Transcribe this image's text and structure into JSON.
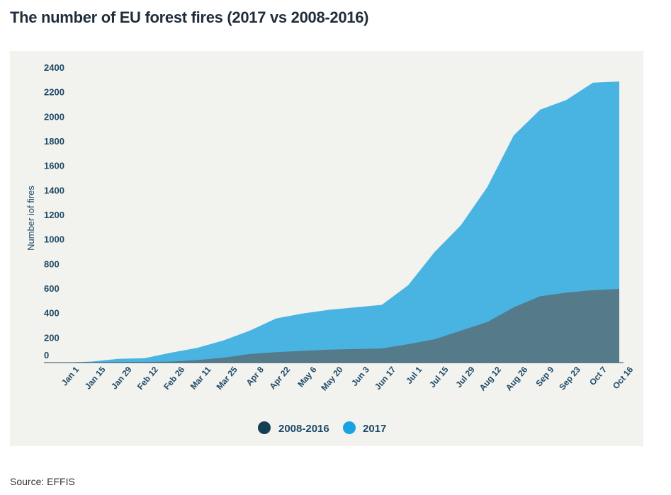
{
  "page": {
    "title": "The number of EU forest fires (2017 vs 2008-2016)",
    "source": "Source: EFFIS"
  },
  "chart_data": {
    "type": "area",
    "title": "The number of EU forest fires (2017 vs 2008-2016)",
    "xlabel": "",
    "ylabel": "Number iof fires",
    "ylim": [
      0,
      2400
    ],
    "yticks": [
      0,
      200,
      400,
      600,
      800,
      1000,
      1200,
      1400,
      1600,
      1800,
      2000,
      2200,
      2400
    ],
    "grid": false,
    "legend_position": "bottom-center",
    "categories": [
      "Jan 1",
      "Jan 15",
      "Jan 29",
      "Feb 12",
      "Feb 26",
      "Mar 11",
      "Mar 25",
      "Apr 8",
      "Apr 22",
      "May 6",
      "May 20",
      "Jun 3",
      "Jun 17",
      "Jul 1",
      "Jul 15",
      "Jul 29",
      "Aug 12",
      "Aug 26",
      "Sep 9",
      "Sep 23",
      "Oct 7",
      "Oct 16"
    ],
    "series": [
      {
        "name": "2008-2016",
        "color": "#557a8a",
        "values": [
          0,
          2,
          4,
          6,
          8,
          20,
          40,
          70,
          85,
          95,
          105,
          110,
          115,
          150,
          190,
          260,
          330,
          450,
          540,
          570,
          590,
          600
        ]
      },
      {
        "name": "2017",
        "color": "#49b3e1",
        "values": [
          0,
          8,
          30,
          35,
          80,
          120,
          180,
          260,
          360,
          400,
          430,
          450,
          470,
          630,
          900,
          1120,
          1430,
          1850,
          2060,
          2140,
          2280,
          2290
        ]
      }
    ]
  }
}
